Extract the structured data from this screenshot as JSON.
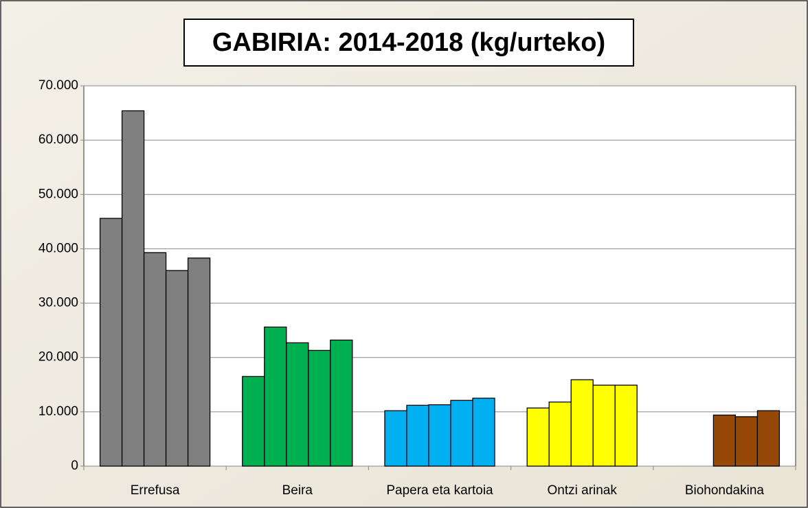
{
  "chart_data": {
    "type": "bar",
    "title": "GABIRIA: 2014-2018 (kg/urteko)",
    "categories": [
      "Errefusa",
      "Beira",
      "Papera eta kartoia",
      "Ontzi arinak",
      "Biohondakina"
    ],
    "colors": [
      "#808080",
      "#00b050",
      "#00b0f0",
      "#ffff00",
      "#974706"
    ],
    "series": [
      {
        "values": [
          45600,
          16500,
          10200,
          10700,
          null
        ]
      },
      {
        "values": [
          65400,
          25600,
          11200,
          11800,
          null
        ]
      },
      {
        "values": [
          39300,
          22700,
          11300,
          15900,
          9400
        ]
      },
      {
        "values": [
          36000,
          21300,
          12100,
          14900,
          9100
        ]
      },
      {
        "values": [
          38300,
          23200,
          12500,
          14900,
          10200
        ]
      }
    ],
    "ylim": [
      0,
      70000
    ],
    "yticks": [
      0,
      {
        "value": 10000,
        "label": "10.000"
      },
      {
        "value": 20000,
        "label": "20.000"
      },
      {
        "value": 30000,
        "label": "30.000"
      },
      {
        "value": 40000,
        "label": "40.000"
      },
      {
        "value": 50000,
        "label": "50.000"
      },
      {
        "value": 60000,
        "label": "60.000"
      },
      {
        "value": 70000,
        "label": "70.000"
      }
    ],
    "grid": true
  }
}
